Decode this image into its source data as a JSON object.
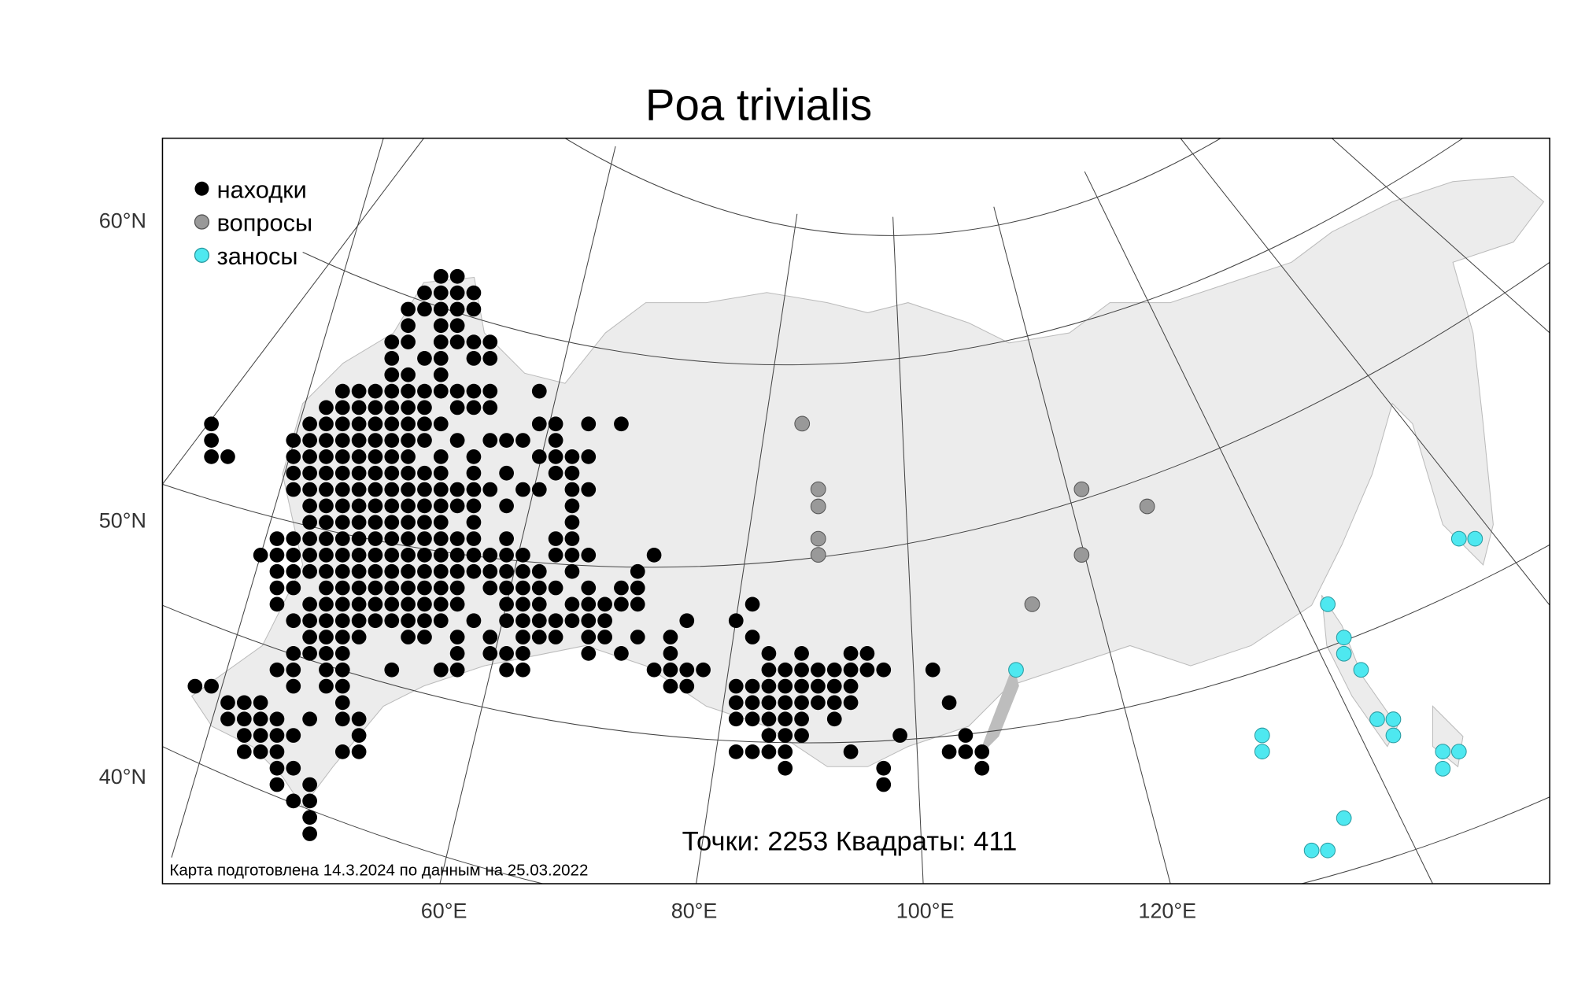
{
  "title": "Poa trivialis",
  "legend": [
    "находки",
    "вопросы",
    "заносы"
  ],
  "lat_labels": [
    "60°N",
    "50°N",
    "40°N"
  ],
  "lon_labels": [
    "60°E",
    "80°E",
    "100°E",
    "120°E"
  ],
  "stats": "Точки: 2253 Квадраты: 411",
  "note": "Карта подготовлена 14.3.2024 по данным на 25.03.2022"
}
